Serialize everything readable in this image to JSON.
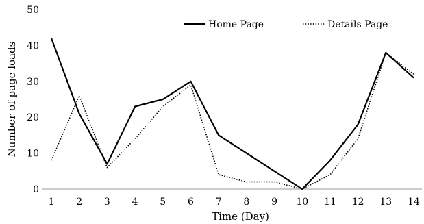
{
  "chart_data": {
    "type": "line",
    "title": "",
    "xlabel": "Time (Day)",
    "ylabel": "Number of page loads",
    "x": [
      1,
      2,
      3,
      4,
      5,
      6,
      7,
      8,
      9,
      10,
      11,
      12,
      13,
      14
    ],
    "ylim": [
      0,
      50
    ],
    "yticks": [
      0,
      10,
      20,
      30,
      40,
      50
    ],
    "grid": false,
    "legend_position": "top-right",
    "series": [
      {
        "name": "Home Page",
        "style": "solid",
        "values": [
          42,
          21,
          7,
          23,
          25,
          30,
          15,
          10,
          5,
          0,
          8,
          18,
          38,
          31
        ]
      },
      {
        "name": "Details Page",
        "style": "dotted",
        "values": [
          8,
          26,
          6,
          14,
          23,
          29,
          4,
          2,
          2,
          0,
          4,
          14,
          38,
          32
        ]
      }
    ]
  }
}
